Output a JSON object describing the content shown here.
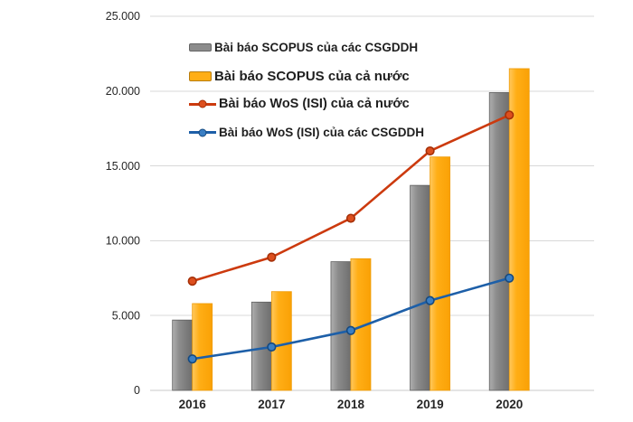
{
  "chart_data": {
    "type": "combo",
    "title": "",
    "xlabel": "",
    "ylabel": "",
    "categories": [
      "2016",
      "2017",
      "2018",
      "2019",
      "2020"
    ],
    "series": [
      {
        "name": "Bài báo SCOPUS của các CSGDDH",
        "type": "bar",
        "color": "#8C8C8C",
        "color_light": "#AFAFAF",
        "color_dark": "#6E6E6E",
        "border": "#5F5F5F",
        "values": [
          4700,
          5900,
          8600,
          13700,
          19900
        ]
      },
      {
        "name": "Bài báo SCOPUS của cả nước",
        "type": "bar",
        "color": "#FFAE16",
        "color_light": "#FFC85E",
        "color_dark": "#FAA105",
        "border": "#EF9B05",
        "values": [
          5800,
          6600,
          8800,
          15600,
          21500
        ]
      },
      {
        "name": "Bài báo WoS (ISI) của cả nước",
        "type": "line",
        "color": "#CC3A0E",
        "marker_fill": "#DD4F1E",
        "marker_stroke": "#A53008",
        "values": [
          7300,
          8900,
          11500,
          16000,
          18400
        ]
      },
      {
        "name": "Bài báo WoS (ISI) của các CSGDDH",
        "type": "line",
        "color": "#1D5FA8",
        "marker_fill": "#3B7FC4",
        "marker_stroke": "#15497F",
        "values": [
          2100,
          2900,
          4000,
          6000,
          7500
        ]
      }
    ],
    "ylim": [
      0,
      25000
    ],
    "ytick_interval": 5000,
    "ytick_labels": [
      "0",
      "5.000",
      "10.000",
      "15.000",
      "20.000",
      "25.000"
    ],
    "grid": true,
    "gridline_color": "#D8D8D8",
    "axis_line_color": "#C8C8C8",
    "legend_position": "inside-top-left"
  }
}
